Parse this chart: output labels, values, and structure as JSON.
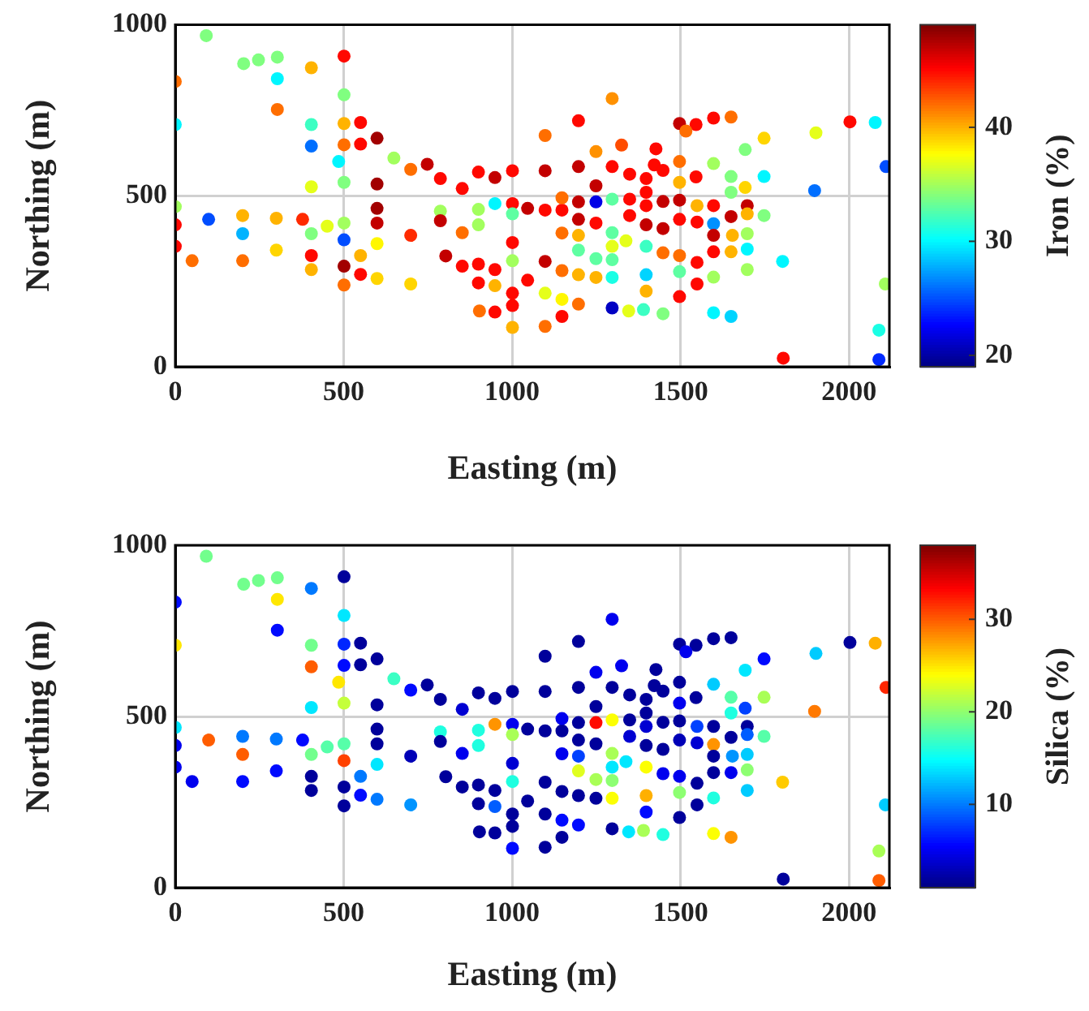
{
  "chart_data": [
    {
      "type": "scatter",
      "xlabel": "Easting (m)",
      "ylabel": "Northing (m)",
      "clabel": "Iron (%)",
      "xlim": [
        0,
        2120
      ],
      "ylim": [
        0,
        1000
      ],
      "xticks": [
        0,
        500,
        1000,
        1500,
        2000
      ],
      "yticks": [
        0,
        500,
        1000
      ],
      "clim": [
        19,
        49
      ],
      "cticks": [
        20,
        30,
        40
      ],
      "grid": true,
      "marker": "circle",
      "x": [
        92,
        0,
        0,
        203,
        247,
        303,
        404,
        303,
        501,
        303,
        501,
        404,
        501,
        550,
        404,
        501,
        550,
        599,
        485,
        649,
        699,
        748,
        787,
        852,
        900,
        949,
        1001,
        501,
        404,
        599,
        0,
        0,
        0,
        99,
        200,
        200,
        300,
        300,
        378,
        404,
        451,
        501,
        501,
        599,
        599,
        599,
        50,
        200,
        404,
        404,
        550,
        501,
        550,
        599,
        501,
        699,
        699,
        787,
        787,
        900,
        900,
        949,
        1001,
        1001,
        852,
        803,
        852,
        900,
        949,
        1001,
        1001,
        900,
        949,
        1001,
        1001,
        903,
        949,
        1001,
        1046,
        1046,
        1297,
        1098,
        1197,
        1325,
        1249,
        1098,
        1197,
        1249,
        1297,
        1349,
        1398,
        1427,
        1422,
        1448,
        1497,
        1546,
        1598,
        1650,
        1516,
        1497,
        1497,
        1546,
        1598,
        1650,
        1692,
        1748,
        1748,
        1692,
        1650,
        1902,
        2003,
        2078,
        2110,
        1898,
        1098,
        1148,
        1148,
        1197,
        1249,
        1297,
        1349,
        1349,
        1398,
        1398,
        1398,
        1448,
        1448,
        1497,
        1497,
        1549,
        1549,
        1598,
        1598,
        1598,
        1650,
        1698,
        1698,
        1748,
        1197,
        1249,
        1148,
        1197,
        1197,
        1297,
        1297,
        1338,
        1398,
        1448,
        1497,
        1497,
        1549,
        1598,
        1650,
        1654,
        1698,
        1698,
        1698,
        1803,
        1098,
        1148,
        1197,
        1249,
        1249,
        1297,
        1297,
        1398,
        1398,
        1448,
        1497,
        1549,
        1598,
        1598,
        1650,
        1098,
        1148,
        1197,
        1098,
        1148,
        1297,
        1346,
        1390,
        1805,
        2108,
        2089,
        2089
      ],
      "values": [
        968,
        834,
        708,
        886,
        897,
        905,
        874,
        842,
        908,
        752,
        795,
        708,
        711,
        714,
        645,
        649,
        651,
        668,
        600,
        610,
        577,
        592,
        550,
        521,
        569,
        553,
        573,
        539,
        526,
        534,
        468,
        415,
        352,
        431,
        442,
        389,
        434,
        341,
        431,
        389,
        411,
        420,
        371,
        463,
        420,
        360,
        310,
        310,
        325,
        284,
        325,
        294,
        270,
        258,
        239,
        384,
        242,
        455,
        427,
        460,
        415,
        477,
        477,
        447,
        392,
        324,
        294,
        300,
        284,
        363,
        310,
        245,
        237,
        215,
        179,
        163,
        160,
        115,
        463,
        253,
        784,
        676,
        719,
        648,
        629,
        573,
        585,
        529,
        585,
        563,
        550,
        637,
        590,
        574,
        711,
        708,
        727,
        730,
        689,
        600,
        539,
        555,
        594,
        556,
        635,
        668,
        556,
        524,
        510,
        684,
        716,
        714,
        585,
        515,
        458,
        458,
        494,
        482,
        482,
        490,
        490,
        442,
        510,
        471,
        415,
        483,
        404,
        487,
        431,
        471,
        423,
        471,
        418,
        384,
        439,
        471,
        447,
        442,
        431,
        420,
        391,
        384,
        341,
        392,
        352,
        368,
        352,
        333,
        325,
        278,
        305,
        336,
        336,
        384,
        389,
        344,
        284,
        308,
        308,
        281,
        269,
        316,
        261,
        313,
        261,
        269,
        221,
        155,
        205,
        242,
        262,
        158,
        147,
        215,
        197,
        183,
        118,
        147,
        172,
        163,
        167,
        25,
        242,
        107,
        21
      ],
      "cvalues": [
        34,
        42,
        30,
        34,
        34,
        34,
        40,
        30,
        45,
        42,
        34,
        32,
        40,
        45,
        26,
        42,
        45,
        48,
        30,
        35,
        42,
        47,
        45,
        45,
        45,
        47,
        45,
        34,
        37,
        48,
        35,
        45,
        45,
        25,
        40,
        28,
        40,
        39,
        44,
        34,
        37,
        35,
        25,
        48,
        47,
        38,
        42,
        42,
        45,
        40,
        40,
        48,
        45,
        39,
        42,
        44,
        39,
        35,
        47,
        35,
        35,
        30,
        45,
        33,
        42,
        47,
        45,
        45,
        45,
        45,
        35,
        45,
        40,
        45,
        45,
        42,
        45,
        40,
        47,
        45,
        41,
        42,
        45,
        43,
        41,
        47,
        47,
        47,
        45,
        45,
        45,
        45,
        45,
        45,
        47,
        45,
        45,
        42,
        42,
        42,
        40,
        45,
        35,
        34,
        34,
        39,
        30,
        39,
        34,
        37,
        45,
        30,
        25,
        26,
        45,
        45,
        42,
        47,
        22,
        33,
        45,
        45,
        45,
        45,
        47,
        47,
        47,
        47,
        45,
        40,
        45,
        45,
        27,
        47,
        47,
        47,
        40,
        34,
        47,
        45,
        42,
        40,
        33,
        33,
        37,
        37,
        32,
        42,
        42,
        33,
        45,
        45,
        40,
        40,
        35,
        30,
        35,
        30,
        47,
        42,
        40,
        33,
        40,
        33,
        31,
        29,
        40,
        34,
        45,
        45,
        35,
        30,
        29,
        37,
        38,
        42,
        42,
        45,
        21,
        37,
        32,
        45,
        35,
        31,
        24
      ]
    },
    {
      "type": "scatter",
      "xlabel": "Easting (m)",
      "ylabel": "Northing (m)",
      "clabel": "Silica (%)",
      "xlim": [
        0,
        2120
      ],
      "ylim": [
        0,
        1000
      ],
      "xticks": [
        0,
        500,
        1000,
        1500,
        2000
      ],
      "yticks": [
        0,
        500,
        1000
      ],
      "clim": [
        1,
        38
      ],
      "cticks": [
        10,
        20,
        30
      ],
      "grid": true,
      "marker": "circle",
      "x": [
        92,
        0,
        0,
        203,
        247,
        303,
        404,
        303,
        501,
        303,
        501,
        404,
        501,
        550,
        404,
        501,
        550,
        599,
        485,
        649,
        699,
        748,
        787,
        852,
        900,
        949,
        1001,
        501,
        404,
        599,
        0,
        0,
        0,
        99,
        200,
        200,
        300,
        300,
        378,
        404,
        451,
        501,
        501,
        599,
        599,
        599,
        50,
        200,
        404,
        404,
        550,
        501,
        550,
        599,
        501,
        699,
        699,
        787,
        787,
        900,
        900,
        949,
        1001,
        1001,
        852,
        803,
        852,
        900,
        949,
        1001,
        1001,
        900,
        949,
        1001,
        1001,
        903,
        949,
        1001,
        1046,
        1046,
        1297,
        1098,
        1197,
        1325,
        1249,
        1098,
        1197,
        1249,
        1297,
        1349,
        1398,
        1427,
        1422,
        1448,
        1497,
        1546,
        1598,
        1650,
        1516,
        1497,
        1497,
        1546,
        1598,
        1650,
        1692,
        1748,
        1748,
        1692,
        1650,
        1902,
        2003,
        2078,
        2110,
        1898,
        1098,
        1148,
        1148,
        1197,
        1249,
        1297,
        1349,
        1349,
        1398,
        1398,
        1398,
        1448,
        1448,
        1497,
        1497,
        1549,
        1549,
        1598,
        1598,
        1598,
        1650,
        1698,
        1698,
        1748,
        1197,
        1249,
        1148,
        1197,
        1197,
        1297,
        1297,
        1338,
        1398,
        1448,
        1497,
        1497,
        1549,
        1598,
        1650,
        1654,
        1698,
        1698,
        1698,
        1803,
        1098,
        1148,
        1197,
        1249,
        1249,
        1297,
        1297,
        1398,
        1398,
        1448,
        1497,
        1549,
        1598,
        1598,
        1650,
        1098,
        1148,
        1197,
        1098,
        1148,
        1297,
        1346,
        1390,
        1805,
        2108,
        2089,
        2089
      ],
      "values": [
        968,
        834,
        708,
        886,
        897,
        905,
        874,
        842,
        908,
        752,
        795,
        708,
        711,
        714,
        645,
        649,
        651,
        668,
        600,
        610,
        577,
        592,
        550,
        521,
        569,
        553,
        573,
        539,
        526,
        534,
        468,
        415,
        352,
        431,
        442,
        389,
        434,
        341,
        431,
        389,
        411,
        420,
        371,
        463,
        420,
        360,
        310,
        310,
        325,
        284,
        325,
        294,
        270,
        258,
        239,
        384,
        242,
        455,
        427,
        460,
        415,
        477,
        477,
        447,
        392,
        324,
        294,
        300,
        284,
        363,
        310,
        245,
        237,
        215,
        179,
        163,
        160,
        115,
        463,
        253,
        784,
        676,
        719,
        648,
        629,
        573,
        585,
        529,
        585,
        563,
        550,
        637,
        590,
        574,
        711,
        708,
        727,
        730,
        689,
        600,
        539,
        555,
        594,
        556,
        635,
        668,
        556,
        524,
        510,
        684,
        716,
        714,
        585,
        515,
        458,
        458,
        494,
        482,
        482,
        490,
        490,
        442,
        510,
        471,
        415,
        483,
        404,
        487,
        431,
        471,
        423,
        471,
        418,
        384,
        439,
        471,
        447,
        442,
        431,
        420,
        391,
        384,
        341,
        392,
        352,
        368,
        352,
        333,
        325,
        278,
        305,
        336,
        336,
        384,
        389,
        344,
        284,
        308,
        308,
        281,
        269,
        316,
        261,
        313,
        261,
        269,
        221,
        155,
        205,
        242,
        262,
        158,
        147,
        215,
        197,
        183,
        118,
        147,
        172,
        163,
        167,
        25,
        242,
        107,
        21
      ],
      "cvalues": [
        19,
        6,
        25,
        19,
        19,
        19,
        10,
        25,
        2,
        6,
        14,
        19,
        7,
        2,
        30,
        6,
        2,
        2,
        25,
        17,
        6,
        2,
        2,
        4,
        2,
        2,
        2,
        22,
        14,
        2,
        14,
        5,
        5,
        30,
        10,
        30,
        10,
        6,
        6,
        19,
        18,
        18,
        31,
        2,
        2,
        14,
        5,
        6,
        2,
        2,
        10,
        2,
        6,
        10,
        2,
        3,
        11,
        16,
        2,
        16,
        16,
        28,
        5,
        21,
        5,
        2,
        2,
        2,
        2,
        4,
        16,
        2,
        9,
        2,
        2,
        2,
        2,
        6,
        2,
        2,
        5,
        2,
        2,
        5,
        5,
        2,
        2,
        2,
        2,
        2,
        2,
        2,
        2,
        2,
        2,
        2,
        2,
        2,
        5,
        2,
        5,
        2,
        13,
        18,
        14,
        6,
        21,
        8,
        16,
        13,
        2,
        27,
        32,
        29,
        2,
        2,
        5,
        2,
        33,
        24,
        2,
        4,
        2,
        4,
        2,
        2,
        2,
        2,
        3,
        8,
        4,
        2,
        28,
        2,
        2,
        2,
        9,
        18,
        2,
        2,
        5,
        8,
        23,
        21,
        14,
        14,
        24,
        5,
        5,
        20,
        2,
        2,
        5,
        11,
        13,
        20,
        13,
        26,
        2,
        2,
        2,
        21,
        2,
        20,
        24,
        27,
        6,
        16,
        2,
        2,
        16,
        24,
        28,
        2,
        6,
        6,
        2,
        2,
        2,
        14,
        21,
        2,
        13,
        21,
        30
      ]
    }
  ]
}
